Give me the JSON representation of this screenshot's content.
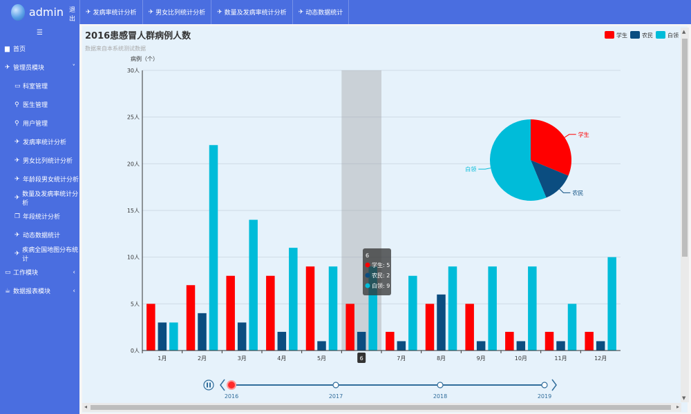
{
  "header": {
    "brand": "admin",
    "logout": "退出",
    "nav": [
      "发病率统计分析",
      "男女比列统计分析",
      "数量及发病率统计分析",
      "动态数据统计"
    ]
  },
  "sidebar": {
    "toggle_icon": "hamburger-icon",
    "items": [
      {
        "label": "首页",
        "icon": "chart-icon",
        "sub": false
      },
      {
        "label": "管理员模块",
        "icon": "plane-icon",
        "sub": false,
        "caret": "˅"
      },
      {
        "label": "科室管理",
        "icon": "monitor-icon",
        "sub": true
      },
      {
        "label": "医生管理",
        "icon": "search-icon",
        "sub": true
      },
      {
        "label": "用户管理",
        "icon": "search-icon",
        "sub": true
      },
      {
        "label": "发病率统计分析",
        "icon": "plane-icon",
        "sub": true
      },
      {
        "label": "男女比列统计分析",
        "icon": "plane-icon",
        "sub": true
      },
      {
        "label": "年龄段男女统计分析",
        "icon": "plane-icon",
        "sub": true
      },
      {
        "label": "数量及发病率统计分析",
        "icon": "plane-icon",
        "sub": true
      },
      {
        "label": "年段统计分析",
        "icon": "copy-icon",
        "sub": true
      },
      {
        "label": "动态数据统计",
        "icon": "plane-icon",
        "sub": true
      },
      {
        "label": "疾病全国地图分布统计",
        "icon": "plane-icon",
        "sub": true
      },
      {
        "label": "工作模块",
        "icon": "monitor-icon",
        "sub": false,
        "caret": "‹"
      },
      {
        "label": "数据报表模块",
        "icon": "cup-icon",
        "sub": false,
        "caret": "‹"
      }
    ]
  },
  "chart_data": {
    "type": "bar",
    "title": "2016患感冒人群病例人数",
    "subtitle": "数据来自本系统测试数据",
    "ylabel": "病例（个）",
    "ylim": [
      0,
      30
    ],
    "yticks": [
      0,
      5,
      10,
      15,
      20,
      25,
      30
    ],
    "ytick_labels": [
      "0人",
      "5人",
      "10人",
      "15人",
      "20人",
      "25人",
      "30人"
    ],
    "categories": [
      "1月",
      "2月",
      "3月",
      "4月",
      "5月",
      "6",
      "7月",
      "8月",
      "9月",
      "10月",
      "11月",
      "12月"
    ],
    "series": [
      {
        "name": "学生",
        "color": "#ff0000",
        "values": [
          5,
          7,
          8,
          8,
          9,
          5,
          2,
          5,
          5,
          2,
          2,
          2
        ]
      },
      {
        "name": "农民",
        "color": "#0b4d80",
        "values": [
          3,
          4,
          3,
          2,
          1,
          2,
          1,
          6,
          1,
          1,
          1,
          1
        ]
      },
      {
        "name": "白领",
        "color": "#00bcd9",
        "values": [
          3,
          22,
          14,
          11,
          9,
          9,
          8,
          9,
          9,
          9,
          5,
          10
        ]
      }
    ],
    "legend": "top-right",
    "highlighted_index": 5,
    "tooltip": {
      "title": "6",
      "rows": [
        "学生: 5",
        "农民: 2",
        "白领: 9"
      ]
    },
    "pie": {
      "type": "pie",
      "slices": [
        {
          "name": "学生",
          "value": 5,
          "color": "#ff0000"
        },
        {
          "name": "农民",
          "value": 2,
          "color": "#0b4d80"
        },
        {
          "name": "白领",
          "value": 9,
          "color": "#00bcd9"
        }
      ]
    },
    "timeline": {
      "years": [
        "2016",
        "2017",
        "2018",
        "2019"
      ],
      "current": 0
    }
  }
}
